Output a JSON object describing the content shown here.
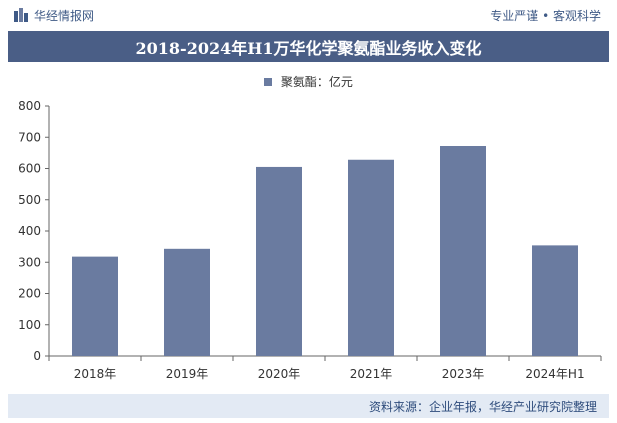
{
  "header": {
    "brand": "华经情报网",
    "slogan": "专业严谨 • 客观科学"
  },
  "chart_data": {
    "type": "bar",
    "title": "2018-2024年H1万华化学聚氨酯业务收入变化",
    "categories": [
      "2018年",
      "2019年",
      "2020年",
      "2021年",
      "2023年",
      "2024年H1"
    ],
    "series": [
      {
        "name": "聚氨酯：亿元",
        "values": [
          318,
          343,
          605,
          628,
          672,
          354
        ]
      }
    ],
    "ylim": [
      0,
      800
    ],
    "yticks": [
      0,
      100,
      200,
      300,
      400,
      500,
      600,
      700,
      800
    ],
    "grid": false,
    "legend": "top-center",
    "colors": {
      "bar": "#6a7ba0",
      "title_bg": "#4a5e86",
      "footer_bg": "#e3eaf4"
    }
  },
  "footer": {
    "source": "资料来源：企业年报，华经产业研究院整理"
  }
}
